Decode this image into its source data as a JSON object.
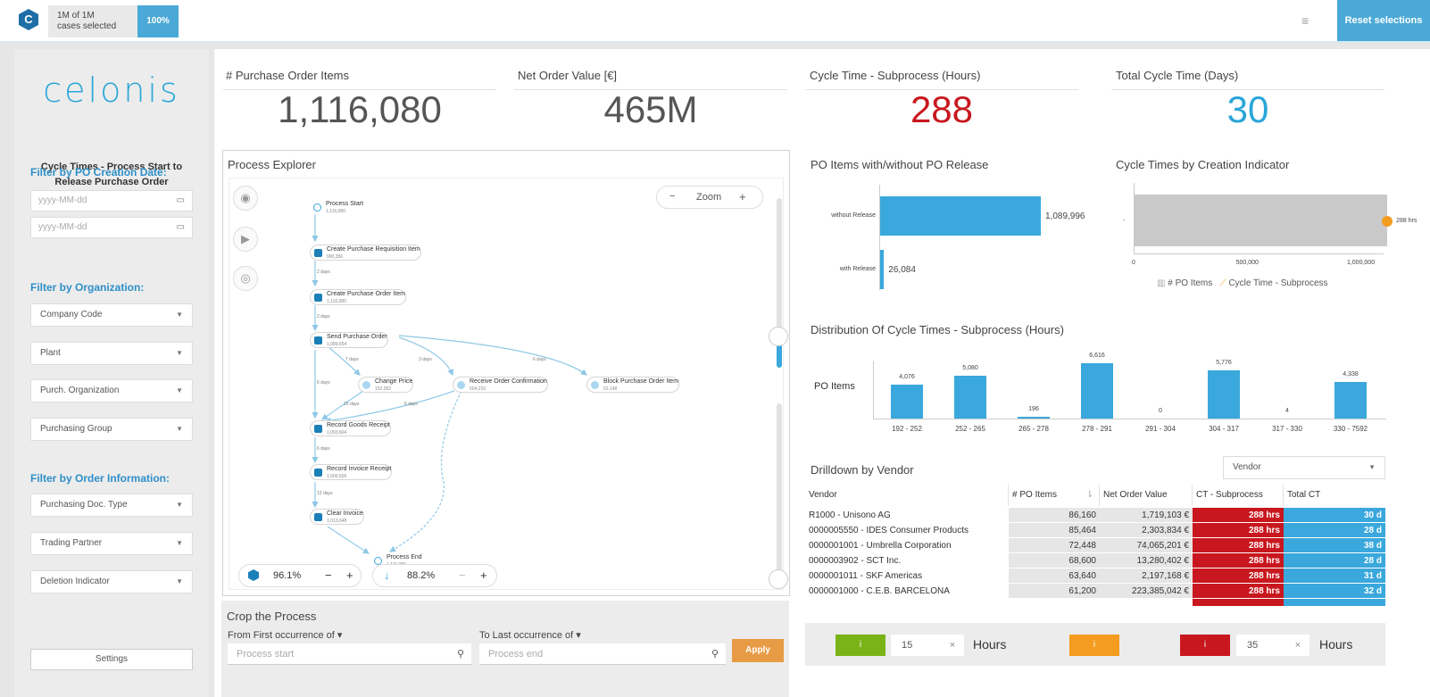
{
  "topbar": {
    "logo_letter": "C",
    "cases_line1": "1M of 1M",
    "cases_line2": "cases selected",
    "pct_selected": "100%",
    "reset_label": "Reset selections"
  },
  "sidebar": {
    "brand": "celonis",
    "title": "Cycle Times - Process Start to Release Purchase Order",
    "filter_date_head": "Filter by PO Creation Date:",
    "date_placeholder": "yyyy-MM-dd",
    "filter_org_head": "Filter by Organization:",
    "org_filters": [
      "Company Code",
      "Plant",
      "Purch. Organization",
      "Purchasing Group"
    ],
    "filter_order_head": "Filter by Order Information:",
    "order_filters": [
      "Purchasing Doc. Type",
      "Trading Partner",
      "Deletion Indicator"
    ],
    "settings_label": "Settings"
  },
  "kpis": [
    {
      "label": "# Purchase Order Items",
      "value": "1,116,080",
      "color": "#555555"
    },
    {
      "label": "Net Order Value [€]",
      "value": "465M",
      "color": "#555555"
    },
    {
      "label": "Cycle Time - Subprocess (Hours)",
      "value": "288",
      "color": "#c8171e"
    },
    {
      "label": "Total Cycle Time (Days)",
      "value": "30",
      "color": "#2aa6d8"
    }
  ],
  "process_explorer": {
    "title": "Process Explorer",
    "zoom_label": "Zoom",
    "zoom_minus": "−",
    "zoom_plus": "+",
    "activity_pct": "96.1%",
    "connection_pct": "88.2%",
    "nodes": [
      {
        "label": "Process Start",
        "count": "1,116,080"
      },
      {
        "label": "Create Purchase Requisition Item",
        "count": "990,356"
      },
      {
        "label": "Create Purchase Order Item",
        "count": "1,116,080"
      },
      {
        "label": "Send Purchase Order",
        "count": "1,089,654"
      },
      {
        "label": "Change Price",
        "count": "152,052"
      },
      {
        "label": "Receive Order Confirmation",
        "count": "504,210"
      },
      {
        "label": "Block Purchase Order Item",
        "count": "52,148"
      },
      {
        "label": "Record Goods Receipt",
        "count": "1,003,604"
      },
      {
        "label": "Record Invoice Receipt",
        "count": "1,000,506"
      },
      {
        "label": "Clear Invoice",
        "count": "1,013,048"
      },
      {
        "label": "Process End",
        "count": "1,116,080"
      }
    ],
    "edge_labels": [
      "2 days",
      "2 days",
      "7 days",
      "3 days",
      "6 days",
      "6 days",
      "10 days",
      "6 days",
      "6 days",
      "12 days"
    ]
  },
  "crop": {
    "title": "Crop the Process",
    "from_label": "From First occurrence of ▾",
    "to_label": "To Last occurrence of ▾",
    "from_placeholder": "Process start",
    "to_placeholder": "Process end",
    "apply_label": "Apply"
  },
  "release_chart": {
    "title": "PO Items with/without PO Release",
    "chart_data": {
      "type": "bar",
      "orientation": "horizontal",
      "categories": [
        "without Release",
        "with Release"
      ],
      "values": [
        1089996,
        26084
      ],
      "value_labels": [
        "1,089,996",
        "26,084"
      ]
    }
  },
  "creation_chart": {
    "title": "Cycle Times by Creation Indicator",
    "chart_data": {
      "type": "bar",
      "orientation": "horizontal",
      "categories": [
        "-"
      ],
      "series": [
        {
          "name": "# PO Items",
          "values": [
            1116080
          ]
        },
        {
          "name": "Cycle Time - Subprocess",
          "values": [
            288
          ]
        }
      ],
      "point_label": "288 hrs",
      "x_ticks": [
        "0",
        "500,000",
        "1,000,000"
      ],
      "xlim": [
        0,
        1100000
      ]
    },
    "legend": [
      "# PO Items",
      "Cycle Time - Subprocess"
    ]
  },
  "distribution_chart": {
    "title": "Distribution Of Cycle Times - Subprocess (Hours)",
    "chart_data": {
      "type": "bar",
      "ylabel": "PO Items",
      "categories": [
        "192 - 252",
        "252 - 265",
        "265 - 278",
        "278 - 291",
        "291 - 304",
        "304 - 317",
        "317 - 330",
        "330 - 7592"
      ],
      "values": [
        4076,
        5080,
        196,
        6616,
        0,
        5776,
        4,
        4338
      ],
      "value_labels": [
        "4,076",
        "5,080",
        "196",
        "6,616",
        "0",
        "5,776",
        "4",
        "4,338"
      ],
      "ylim": [
        0,
        6616
      ]
    }
  },
  "drilldown": {
    "title": "Drilldown by Vendor",
    "dropdown": "Vendor",
    "columns": [
      "Vendor",
      "# PO Items",
      "Net Order Value",
      "CT - Subprocess",
      "Total CT"
    ],
    "rows": [
      [
        "R1000 - Unisono AG",
        "86,160",
        "1,719,103 €",
        "288 hrs",
        "30 d"
      ],
      [
        "0000005550 - IDES Consumer Products",
        "85,464",
        "2,303,834 €",
        "288 hrs",
        "28 d"
      ],
      [
        "0000001001 - Umbrella Corporation",
        "72,448",
        "74,065,201 €",
        "288 hrs",
        "38 d"
      ],
      [
        "0000003902 - SCT Inc.",
        "68,600",
        "13,280,402 €",
        "288 hrs",
        "28 d"
      ],
      [
        "0000001011 - SKF Americas",
        "63,640",
        "2,197,168 €",
        "288 hrs",
        "31 d"
      ],
      [
        "0000001000 - C.E.B. BARCELONA",
        "61,200",
        "223,385,042 €",
        "288 hrs",
        "32 d"
      ]
    ]
  },
  "thresholds": {
    "green_label": "i",
    "orange_label": "i",
    "red_label": "i",
    "low_value": "15",
    "high_value": "35",
    "unit": "Hours",
    "clear": "×",
    "colors": {
      "green": "#7ab317",
      "orange": "#f39c1f",
      "red": "#c8171e"
    }
  }
}
